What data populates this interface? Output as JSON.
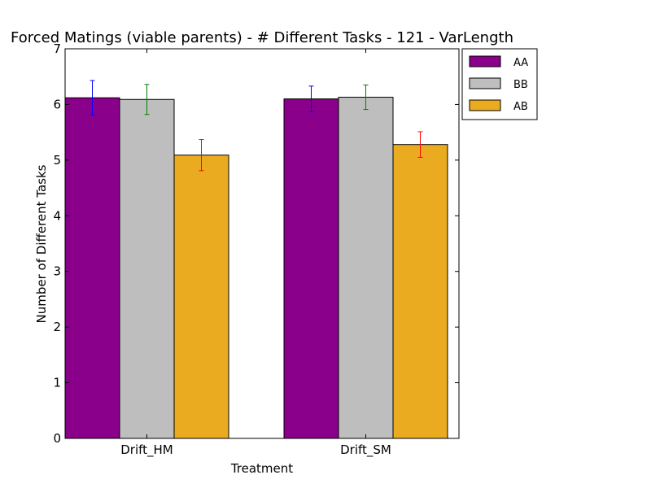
{
  "chart_data": {
    "type": "bar",
    "title": "Forced Matings (viable parents) - # Different Tasks - 121 - VarLength",
    "xlabel": "Treatment",
    "ylabel": "Number of Different Tasks",
    "ylim": [
      0,
      7
    ],
    "yticks": [
      0,
      1,
      2,
      3,
      4,
      5,
      6,
      7
    ],
    "categories": [
      "Drift_HM",
      "Drift_SM"
    ],
    "series": [
      {
        "name": "AA",
        "color": "#8b008b",
        "error_color": "#0000ff",
        "values": [
          6.12,
          6.1
        ],
        "errors": [
          0.31,
          0.23
        ]
      },
      {
        "name": "BB",
        "color": "#bebebe",
        "error_color": "#008000",
        "values": [
          6.09,
          6.13
        ],
        "errors": [
          0.27,
          0.22
        ]
      },
      {
        "name": "AB",
        "color": "#ebab21",
        "error_color": "#ff0000",
        "values": [
          5.09,
          5.28
        ],
        "errors": [
          0.28,
          0.23
        ]
      }
    ],
    "legend_position": "outside-top-right",
    "grid": false
  }
}
